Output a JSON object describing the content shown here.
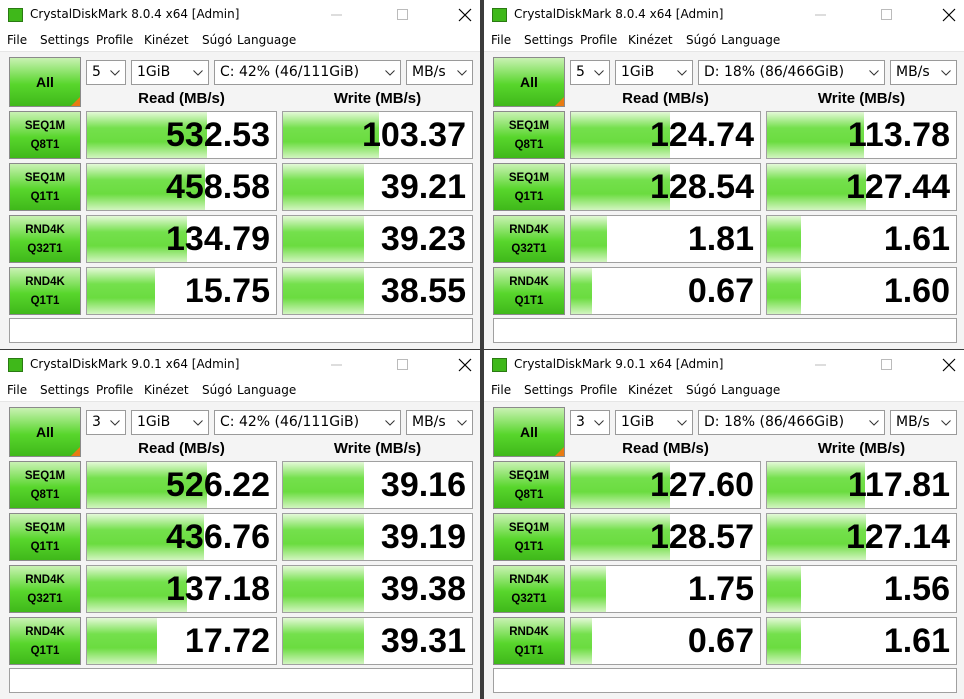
{
  "windows": [
    {
      "title": "CrystalDiskMark 8.0.4 x64 [Admin]",
      "menu": [
        "File",
        "Settings",
        "Profile",
        "Kinézet",
        "Súgó",
        "Language"
      ],
      "all_button": "All",
      "count": "5",
      "size": "1GiB",
      "drive": "C: 42% (46/111GiB)",
      "unit": "MB/s",
      "read_header": "Read (MB/s)",
      "write_header": "Write (MB/s)",
      "rows": [
        {
          "label1": "SEQ1M",
          "label2": "Q8T1",
          "read": "532.53",
          "write": "103.37"
        },
        {
          "label1": "SEQ1M",
          "label2": "Q1T1",
          "read": "458.58",
          "write": "39.21"
        },
        {
          "label1": "RND4K",
          "label2": "Q32T1",
          "read": "134.79",
          "write": "39.23"
        },
        {
          "label1": "RND4K",
          "label2": "Q1T1",
          "read": "15.75",
          "write": "38.55"
        }
      ]
    },
    {
      "title": "CrystalDiskMark 8.0.4 x64 [Admin]",
      "menu": [
        "File",
        "Settings",
        "Profile",
        "Kinézet",
        "Súgó",
        "Language"
      ],
      "all_button": "All",
      "count": "5",
      "size": "1GiB",
      "drive": "D: 18% (86/466GiB)",
      "unit": "MB/s",
      "read_header": "Read (MB/s)",
      "write_header": "Write (MB/s)",
      "rows": [
        {
          "label1": "SEQ1M",
          "label2": "Q8T1",
          "read": "124.74",
          "write": "113.78"
        },
        {
          "label1": "SEQ1M",
          "label2": "Q1T1",
          "read": "128.54",
          "write": "127.44"
        },
        {
          "label1": "RND4K",
          "label2": "Q32T1",
          "read": "1.81",
          "write": "1.61"
        },
        {
          "label1": "RND4K",
          "label2": "Q1T1",
          "read": "0.67",
          "write": "1.60"
        }
      ]
    },
    {
      "title": "CrystalDiskMark 9.0.1 x64 [Admin]",
      "menu": [
        "File",
        "Settings",
        "Profile",
        "Kinézet",
        "Súgó",
        "Language"
      ],
      "all_button": "All",
      "count": "3",
      "size": "1GiB",
      "drive": "C: 42% (46/111GiB)",
      "unit": "MB/s",
      "read_header": "Read (MB/s)",
      "write_header": "Write (MB/s)",
      "rows": [
        {
          "label1": "SEQ1M",
          "label2": "Q8T1",
          "read": "526.22",
          "write": "39.16"
        },
        {
          "label1": "SEQ1M",
          "label2": "Q1T1",
          "read": "436.76",
          "write": "39.19"
        },
        {
          "label1": "RND4K",
          "label2": "Q32T1",
          "read": "137.18",
          "write": "39.38"
        },
        {
          "label1": "RND4K",
          "label2": "Q1T1",
          "read": "17.72",
          "write": "39.31"
        }
      ]
    },
    {
      "title": "CrystalDiskMark 9.0.1 x64 [Admin]",
      "menu": [
        "File",
        "Settings",
        "Profile",
        "Kinézet",
        "Súgó",
        "Language"
      ],
      "all_button": "All",
      "count": "3",
      "size": "1GiB",
      "drive": "D: 18% (86/466GiB)",
      "unit": "MB/s",
      "read_header": "Read (MB/s)",
      "write_header": "Write (MB/s)",
      "rows": [
        {
          "label1": "SEQ1M",
          "label2": "Q8T1",
          "read": "127.60",
          "write": "117.81"
        },
        {
          "label1": "SEQ1M",
          "label2": "Q1T1",
          "read": "128.57",
          "write": "127.14"
        },
        {
          "label1": "RND4K",
          "label2": "Q32T1",
          "read": "1.75",
          "write": "1.56"
        },
        {
          "label1": "RND4K",
          "label2": "Q1T1",
          "read": "0.67",
          "write": "1.61"
        }
      ]
    }
  ]
}
